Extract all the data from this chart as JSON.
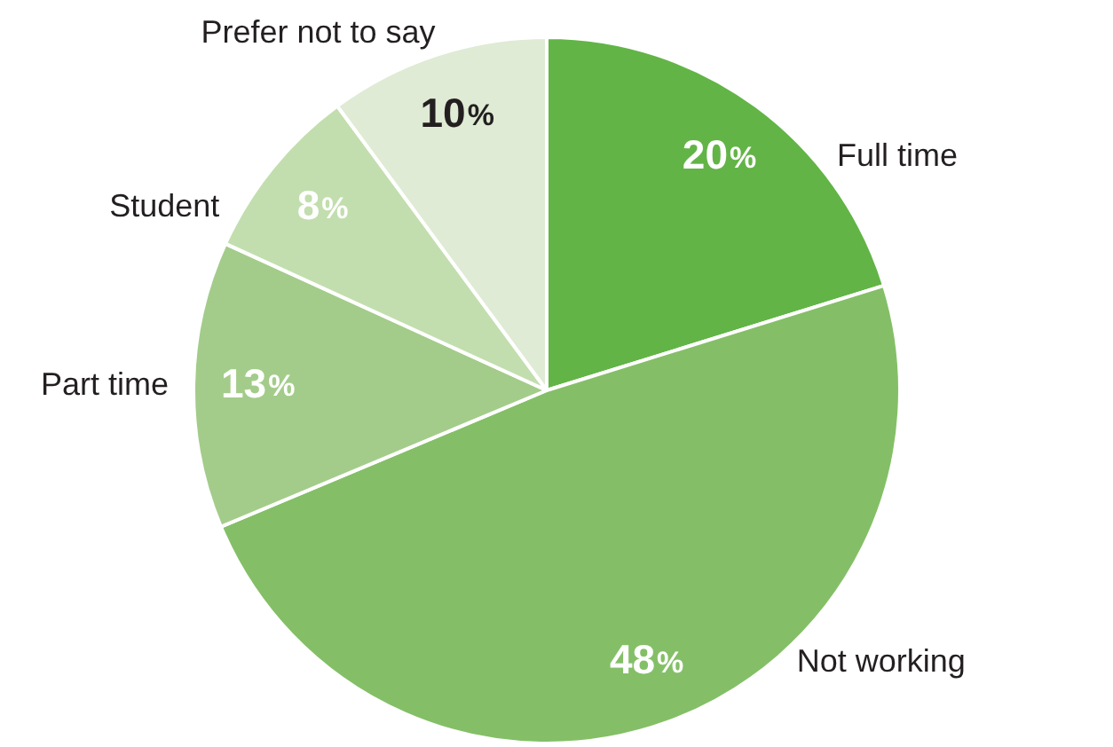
{
  "chart_data": {
    "type": "pie",
    "categories": [
      "Full time",
      "Not working",
      "Part time",
      "Student",
      "Prefer not to say"
    ],
    "values": [
      20,
      48,
      13,
      8,
      10
    ],
    "colors": [
      "#62b446",
      "#84bf67",
      "#a3cc8a",
      "#c2deae",
      "#dfebd4"
    ],
    "value_labels": [
      "20%",
      "48%",
      "13%",
      "8%",
      "10%"
    ]
  }
}
